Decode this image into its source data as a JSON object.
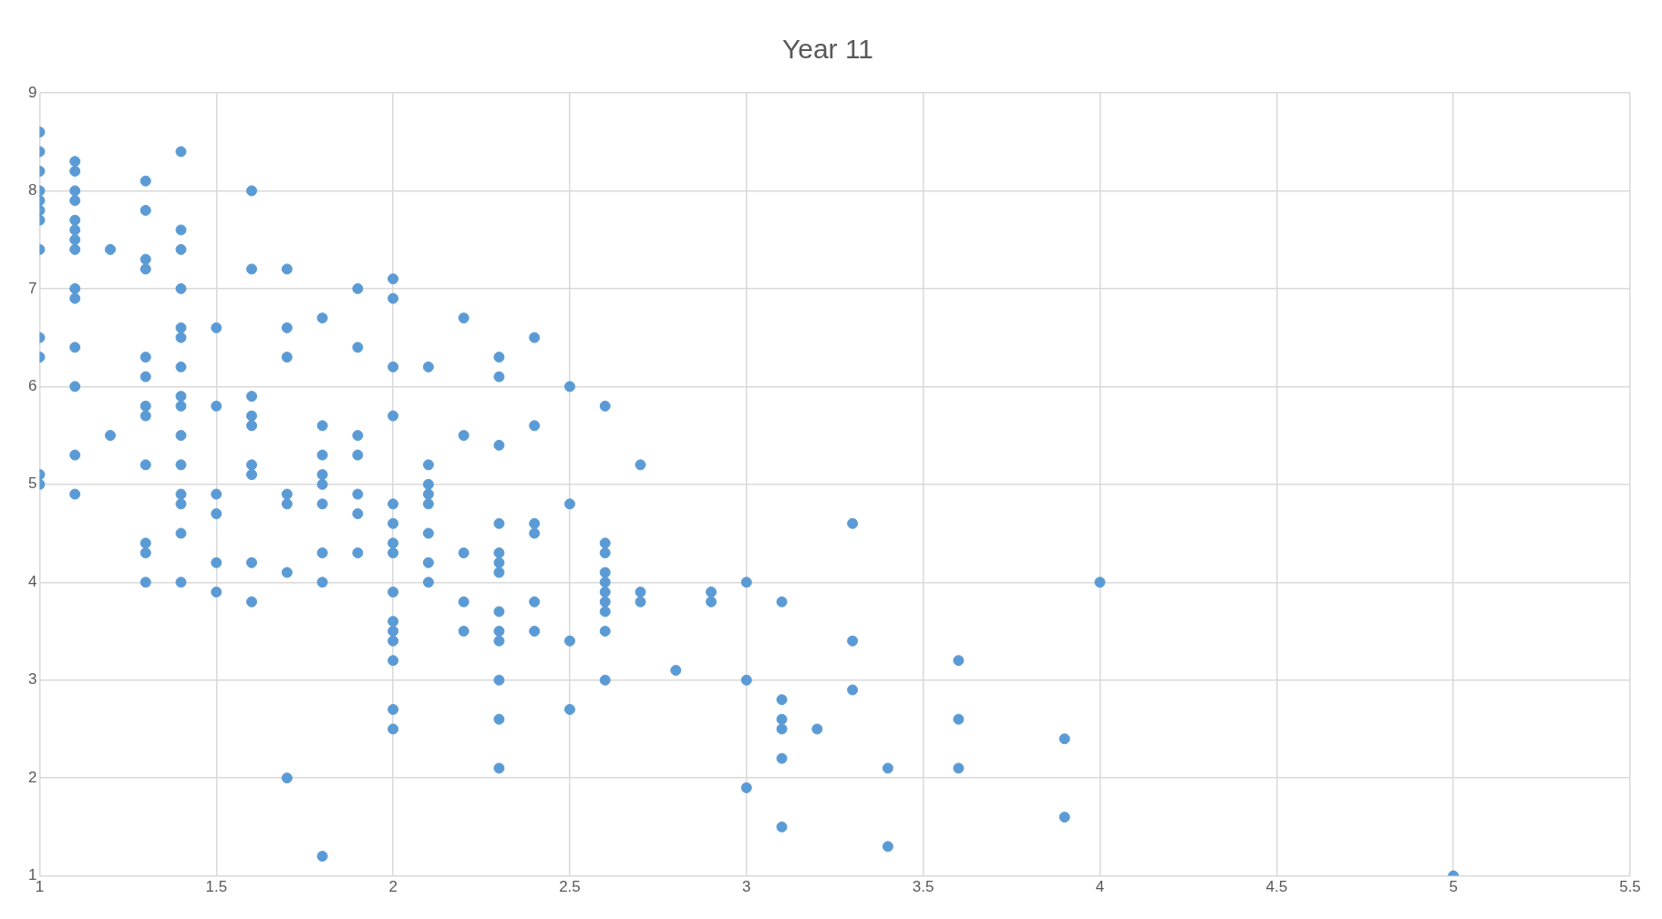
{
  "chart_data": {
    "type": "scatter",
    "title": "Year 11",
    "x": [
      1,
      1,
      1,
      1,
      1,
      1,
      1,
      1,
      1,
      1,
      1,
      1,
      1.1,
      1.1,
      1.1,
      1.1,
      1.1,
      1.1,
      1.1,
      1.1,
      1.1,
      1.1,
      1.1,
      1.1,
      1.1,
      1.1,
      1.2,
      1.2,
      1.3,
      1.3,
      1.3,
      1.3,
      1.3,
      1.3,
      1.3,
      1.3,
      1.3,
      1.3,
      1.3,
      1.3,
      1.4,
      1.4,
      1.4,
      1.4,
      1.4,
      1.4,
      1.4,
      1.4,
      1.4,
      1.4,
      1.4,
      1.4,
      1.4,
      1.4,
      1.4,
      1.5,
      1.5,
      1.5,
      1.5,
      1.5,
      1.5,
      1.6,
      1.6,
      1.6,
      1.6,
      1.6,
      1.6,
      1.6,
      1.6,
      1.6,
      1.7,
      1.7,
      1.7,
      1.7,
      1.7,
      1.7,
      1.7,
      1.8,
      1.8,
      1.8,
      1.8,
      1.8,
      1.8,
      1.8,
      1.8,
      1.8,
      1.9,
      1.9,
      1.9,
      1.9,
      1.9,
      1.9,
      1.9,
      2,
      2,
      2,
      2,
      2,
      2,
      2,
      2,
      2,
      2,
      2,
      2,
      2,
      2,
      2,
      2.1,
      2.1,
      2.1,
      2.1,
      2.1,
      2.1,
      2.1,
      2.1,
      2.2,
      2.2,
      2.2,
      2.2,
      2.2,
      2.3,
      2.3,
      2.3,
      2.3,
      2.3,
      2.3,
      2.3,
      2.3,
      2.3,
      2.3,
      2.3,
      2.3,
      2.3,
      2.4,
      2.4,
      2.4,
      2.4,
      2.4,
      2.4,
      2.5,
      2.5,
      2.5,
      2.5,
      2.6,
      2.6,
      2.6,
      2.6,
      2.6,
      2.6,
      2.6,
      2.6,
      2.6,
      2.6,
      2.7,
      2.7,
      2.7,
      2.8,
      2.9,
      2.9,
      3,
      3,
      3,
      3.1,
      3.1,
      3.1,
      3.1,
      3.1,
      3.1,
      3.2,
      3.3,
      3.3,
      3.3,
      3.4,
      3.4,
      3.6,
      3.6,
      3.6,
      3.9,
      3.9,
      4,
      5
    ],
    "series": [
      {
        "color": "#5b9bd5",
        "values": [
          8.6,
          8.4,
          8.2,
          8,
          7.9,
          7.8,
          7.7,
          7.4,
          6.5,
          6.3,
          5.1,
          5,
          8.3,
          8.2,
          8,
          7.9,
          7.7,
          7.6,
          7.5,
          7.4,
          7,
          6.9,
          6.4,
          6,
          5.3,
          4.9,
          7.4,
          5.5,
          8.1,
          7.8,
          7.3,
          7.2,
          6.3,
          6.1,
          5.8,
          5.7,
          5.2,
          4.4,
          4.3,
          4,
          8.4,
          7.6,
          7.4,
          7,
          6.6,
          6.5,
          6.2,
          5.9,
          5.8,
          5.5,
          5.2,
          4.9,
          4.8,
          4.5,
          4,
          6.6,
          5.8,
          4.9,
          4.7,
          4.2,
          3.9,
          8,
          7.2,
          5.9,
          5.7,
          5.6,
          5.2,
          5.1,
          4.2,
          3.8,
          7.2,
          6.6,
          6.3,
          4.9,
          4.8,
          4.1,
          2,
          6.7,
          5.6,
          5.3,
          5.1,
          5,
          4.8,
          4.3,
          4,
          1.2,
          7,
          6.4,
          5.5,
          5.3,
          4.9,
          4.7,
          4.3,
          7.1,
          6.9,
          6.2,
          5.7,
          4.8,
          4.6,
          4.4,
          4.3,
          3.9,
          3.6,
          3.5,
          3.4,
          3.2,
          2.7,
          2.5,
          6.2,
          5.2,
          5,
          4.9,
          4.8,
          4.5,
          4.2,
          4,
          6.7,
          5.5,
          4.3,
          3.8,
          3.5,
          6.3,
          6.1,
          5.4,
          4.6,
          4.3,
          4.2,
          4.1,
          3.7,
          3.5,
          3.4,
          3,
          2.6,
          2.1,
          6.5,
          5.6,
          4.6,
          4.5,
          3.8,
          3.5,
          6,
          4.8,
          3.4,
          2.7,
          5.8,
          4.4,
          4.3,
          4.1,
          4,
          3.9,
          3.8,
          3.7,
          3.5,
          3,
          5.2,
          3.9,
          3.8,
          3.1,
          3.9,
          3.8,
          4,
          3,
          1.9,
          3.8,
          2.8,
          2.6,
          2.5,
          2.2,
          1.5,
          2.5,
          4.6,
          3.4,
          2.9,
          2.1,
          1.3,
          3.2,
          2.6,
          2.1,
          2.4,
          1.6,
          4,
          1
        ]
      }
    ],
    "xlim": [
      1,
      5.5
    ],
    "xticks": [
      1,
      1.5,
      2,
      2.5,
      3,
      3.5,
      4,
      4.5,
      5,
      5.5
    ],
    "ylim": [
      1,
      9
    ],
    "yticks": [
      1,
      2,
      3,
      4,
      5,
      6,
      7,
      8,
      9
    ],
    "grid": true,
    "marker": "circle",
    "legend": false
  }
}
